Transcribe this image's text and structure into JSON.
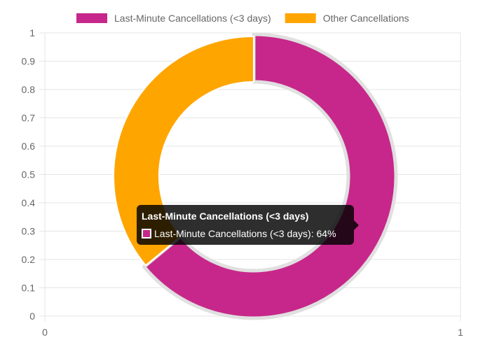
{
  "chart_data": {
    "type": "pie",
    "variant": "doughnut",
    "categories": [
      "Last-Minute Cancellations (<3 days)",
      "Other Cancellations"
    ],
    "values": [
      64,
      36
    ],
    "unit": "%",
    "colors": [
      "#C7278A",
      "#FFA500"
    ],
    "legend": {
      "position": "top",
      "entries": [
        {
          "label": "Last-Minute Cancellations (<3 days)",
          "color": "#C7278A"
        },
        {
          "label": "Other Cancellations",
          "color": "#FFA500"
        }
      ]
    },
    "hovered_index": 0,
    "x_axis": {
      "ticks": [
        "0",
        "1"
      ],
      "range": [
        0,
        1
      ]
    },
    "y_axis": {
      "ticks": [
        "1",
        "0.9",
        "0.8",
        "0.7",
        "0.6",
        "0.5",
        "0.4",
        "0.3",
        "0.2",
        "0.1",
        "0"
      ],
      "range": [
        0,
        1
      ]
    },
    "grid": true
  },
  "tooltip": {
    "title": "Last-Minute Cancellations (<3 days)",
    "body": "Last-Minute Cancellations (<3 days): 64%",
    "color": "#C7278A"
  }
}
